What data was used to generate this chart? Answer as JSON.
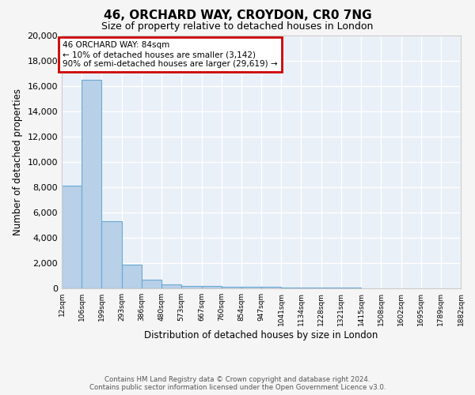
{
  "title": "46, ORCHARD WAY, CROYDON, CR0 7NG",
  "subtitle": "Size of property relative to detached houses in London",
  "xlabel": "Distribution of detached houses by size in London",
  "ylabel": "Number of detached properties",
  "bar_values": [
    8100,
    16500,
    5300,
    1850,
    700,
    300,
    200,
    200,
    150,
    150,
    100,
    80,
    60,
    50,
    40,
    30,
    25,
    20,
    15,
    12
  ],
  "bin_edges": [
    12,
    106,
    199,
    293,
    386,
    480,
    573,
    667,
    760,
    854,
    947,
    1041,
    1134,
    1228,
    1321,
    1415,
    1508,
    1602,
    1695,
    1789,
    1882
  ],
  "x_tick_labels": [
    "12sqm",
    "106sqm",
    "199sqm",
    "293sqm",
    "386sqm",
    "480sqm",
    "573sqm",
    "667sqm",
    "760sqm",
    "854sqm",
    "947sqm",
    "1041sqm",
    "1134sqm",
    "1228sqm",
    "1321sqm",
    "1415sqm",
    "1508sqm",
    "1602sqm",
    "1695sqm",
    "1789sqm",
    "1882sqm"
  ],
  "bar_color": "#b8d0e8",
  "bar_edge_color": "#6aaad4",
  "bg_color": "#eaf0f8",
  "grid_color": "#ffffff",
  "annotation_line1": "46 ORCHARD WAY: 84sqm",
  "annotation_line2": "← 10% of detached houses are smaller (3,142)",
  "annotation_line3": "90% of semi-detached houses are larger (29,619) →",
  "annotation_box_color": "#ffffff",
  "annotation_box_edge": "#cc0000",
  "ylim": [
    0,
    20000
  ],
  "yticks": [
    0,
    2000,
    4000,
    6000,
    8000,
    10000,
    12000,
    14000,
    16000,
    18000,
    20000
  ],
  "footer_line1": "Contains HM Land Registry data © Crown copyright and database right 2024.",
  "footer_line2": "Contains public sector information licensed under the Open Government Licence v3.0."
}
